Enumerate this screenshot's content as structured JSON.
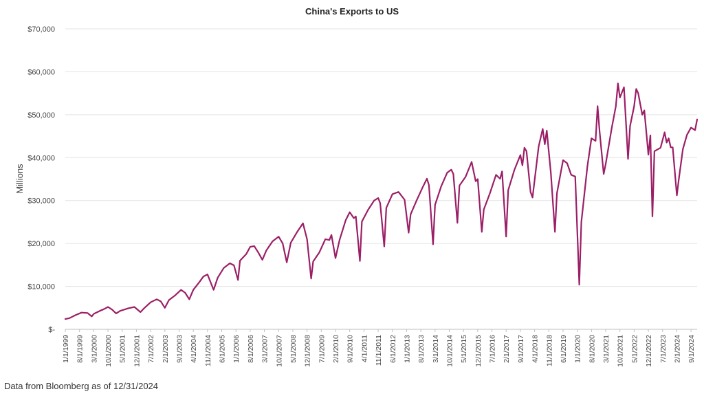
{
  "source_note": "Data from Bloomberg as of 12/31/2024",
  "chart_data": {
    "type": "line",
    "title": "China's Exports to US",
    "ylabel": "Millions",
    "xlabel": "",
    "ylim": [
      0,
      70000
    ],
    "yticks": [
      {
        "value": 0,
        "label": "$-"
      },
      {
        "value": 10000,
        "label": "$10,000"
      },
      {
        "value": 20000,
        "label": "$20,000"
      },
      {
        "value": 30000,
        "label": "$30,000"
      },
      {
        "value": 40000,
        "label": "$40,000"
      },
      {
        "value": 50000,
        "label": "$50,000"
      },
      {
        "value": 60000,
        "label": "$60,000"
      },
      {
        "value": 70000,
        "label": "$70,000"
      }
    ],
    "xrange": [
      "1/1/1999",
      "12/1/2024"
    ],
    "xticks": [
      "1/1/1999",
      "8/1/1999",
      "3/1/2000",
      "10/1/2000",
      "5/1/2001",
      "12/1/2001",
      "7/1/2002",
      "2/1/2003",
      "9/1/2003",
      "4/1/2004",
      "11/1/2004",
      "6/1/2005",
      "1/1/2006",
      "8/1/2006",
      "3/1/2007",
      "10/1/2007",
      "5/1/2008",
      "12/1/2008",
      "7/1/2009",
      "2/1/2010",
      "9/1/2010",
      "4/1/2011",
      "11/1/2011",
      "6/1/2012",
      "1/1/2013",
      "8/1/2013",
      "3/1/2014",
      "10/1/2014",
      "5/1/2015",
      "12/1/2015",
      "7/1/2016",
      "2/1/2017",
      "9/1/2017",
      "4/1/2018",
      "11/1/2018",
      "6/1/2019",
      "1/1/2020",
      "8/1/2020",
      "3/1/2021",
      "10/1/2021",
      "5/1/2022",
      "12/1/2022",
      "7/1/2023",
      "2/1/2024",
      "9/1/2024"
    ],
    "grid": true,
    "line_color": "#9b1f66",
    "series": [
      {
        "name": "",
        "points": [
          [
            "1/1/1999",
            2400
          ],
          [
            "3/1/1999",
            2600
          ],
          [
            "6/1/1999",
            3300
          ],
          [
            "9/1/1999",
            3900
          ],
          [
            "12/1/1999",
            3800
          ],
          [
            "2/1/2000",
            3000
          ],
          [
            "3/1/2000",
            3600
          ],
          [
            "6/1/2000",
            4300
          ],
          [
            "8/1/2000",
            4700
          ],
          [
            "10/1/2000",
            5200
          ],
          [
            "12/1/2000",
            4600
          ],
          [
            "2/1/2001",
            3700
          ],
          [
            "4/1/2001",
            4300
          ],
          [
            "8/1/2001",
            4900
          ],
          [
            "11/1/2001",
            5200
          ],
          [
            "2/1/2002",
            4000
          ],
          [
            "4/1/2002",
            5000
          ],
          [
            "7/1/2002",
            6300
          ],
          [
            "10/1/2002",
            7000
          ],
          [
            "12/1/2002",
            6500
          ],
          [
            "2/1/2003",
            5000
          ],
          [
            "4/1/2003",
            6800
          ],
          [
            "7/1/2003",
            7900
          ],
          [
            "10/1/2003",
            9200
          ],
          [
            "12/1/2003",
            8500
          ],
          [
            "2/1/2004",
            7000
          ],
          [
            "4/1/2004",
            9200
          ],
          [
            "7/1/2004",
            11000
          ],
          [
            "9/1/2004",
            12300
          ],
          [
            "11/1/2004",
            12800
          ],
          [
            "2/1/2005",
            9200
          ],
          [
            "4/1/2005",
            12000
          ],
          [
            "7/1/2005",
            14300
          ],
          [
            "10/1/2005",
            15400
          ],
          [
            "12/1/2005",
            14900
          ],
          [
            "2/1/2006",
            11500
          ],
          [
            "3/1/2006",
            16000
          ],
          [
            "6/1/2006",
            17500
          ],
          [
            "8/1/2006",
            19200
          ],
          [
            "10/1/2006",
            19400
          ],
          [
            "12/1/2006",
            17900
          ],
          [
            "2/1/2007",
            16200
          ],
          [
            "4/1/2007",
            18400
          ],
          [
            "7/1/2007",
            20500
          ],
          [
            "10/1/2007",
            21600
          ],
          [
            "12/1/2007",
            20000
          ],
          [
            "2/1/2008",
            15600
          ],
          [
            "4/1/2008",
            20200
          ],
          [
            "7/1/2008",
            22600
          ],
          [
            "10/1/2008",
            24700
          ],
          [
            "12/1/2008",
            21000
          ],
          [
            "2/1/2009",
            11800
          ],
          [
            "3/1/2009",
            15800
          ],
          [
            "6/1/2009",
            17900
          ],
          [
            "9/1/2009",
            21000
          ],
          [
            "11/1/2009",
            20800
          ],
          [
            "12/1/2009",
            22000
          ],
          [
            "2/1/2010",
            16600
          ],
          [
            "4/1/2010",
            20800
          ],
          [
            "7/1/2010",
            25400
          ],
          [
            "9/1/2010",
            27300
          ],
          [
            "11/1/2010",
            25900
          ],
          [
            "12/1/2010",
            26300
          ],
          [
            "2/1/2011",
            15900
          ],
          [
            "3/1/2011",
            25100
          ],
          [
            "6/1/2011",
            27800
          ],
          [
            "9/1/2011",
            30000
          ],
          [
            "11/1/2011",
            30600
          ],
          [
            "12/1/2011",
            29400
          ],
          [
            "2/1/2012",
            19300
          ],
          [
            "3/1/2012",
            28300
          ],
          [
            "6/1/2012",
            31500
          ],
          [
            "9/1/2012",
            32000
          ],
          [
            "12/1/2012",
            30200
          ],
          [
            "2/1/2013",
            22500
          ],
          [
            "3/1/2013",
            26800
          ],
          [
            "6/1/2013",
            30100
          ],
          [
            "9/1/2013",
            33200
          ],
          [
            "11/1/2013",
            35100
          ],
          [
            "12/1/2013",
            33600
          ],
          [
            "2/1/2014",
            19800
          ],
          [
            "3/1/2014",
            29000
          ],
          [
            "6/1/2014",
            33300
          ],
          [
            "9/1/2014",
            36500
          ],
          [
            "11/1/2014",
            37200
          ],
          [
            "12/1/2014",
            36200
          ],
          [
            "2/1/2015",
            24800
          ],
          [
            "3/1/2015",
            33500
          ],
          [
            "6/1/2015",
            35500
          ],
          [
            "8/1/2015",
            37800
          ],
          [
            "9/1/2015",
            39000
          ],
          [
            "11/1/2015",
            34500
          ],
          [
            "12/1/2015",
            35000
          ],
          [
            "2/1/2016",
            22700
          ],
          [
            "3/1/2016",
            27900
          ],
          [
            "6/1/2016",
            31700
          ],
          [
            "9/1/2016",
            36000
          ],
          [
            "11/1/2016",
            35100
          ],
          [
            "12/1/2016",
            36800
          ],
          [
            "2/1/2017",
            21600
          ],
          [
            "3/1/2017",
            32400
          ],
          [
            "6/1/2017",
            37100
          ],
          [
            "9/1/2017",
            40600
          ],
          [
            "10/1/2017",
            38200
          ],
          [
            "11/1/2017",
            42300
          ],
          [
            "12/1/2017",
            41500
          ],
          [
            "2/1/2018",
            32000
          ],
          [
            "3/1/2018",
            30700
          ],
          [
            "6/1/2018",
            42600
          ],
          [
            "8/1/2018",
            46700
          ],
          [
            "9/1/2018",
            43100
          ],
          [
            "10/1/2018",
            46300
          ],
          [
            "12/1/2018",
            36500
          ],
          [
            "2/1/2019",
            22700
          ],
          [
            "3/1/2019",
            31700
          ],
          [
            "6/1/2019",
            39400
          ],
          [
            "8/1/2019",
            38700
          ],
          [
            "10/1/2019",
            36000
          ],
          [
            "12/1/2019",
            35600
          ],
          [
            "2/1/2020",
            10400
          ],
          [
            "3/1/2020",
            25000
          ],
          [
            "6/1/2020",
            38000
          ],
          [
            "8/1/2020",
            44500
          ],
          [
            "10/1/2020",
            43900
          ],
          [
            "11/1/2020",
            52000
          ],
          [
            "12/1/2020",
            46000
          ],
          [
            "2/1/2021",
            36200
          ],
          [
            "3/1/2021",
            38500
          ],
          [
            "6/1/2021",
            47000
          ],
          [
            "8/1/2021",
            52000
          ],
          [
            "9/1/2021",
            57300
          ],
          [
            "10/1/2021",
            54000
          ],
          [
            "12/1/2021",
            56400
          ],
          [
            "2/1/2022",
            39700
          ],
          [
            "3/1/2022",
            47400
          ],
          [
            "5/1/2022",
            52000
          ],
          [
            "6/1/2022",
            56000
          ],
          [
            "7/1/2022",
            55000
          ],
          [
            "9/1/2022",
            50000
          ],
          [
            "10/1/2022",
            51000
          ],
          [
            "12/1/2022",
            40700
          ],
          [
            "1/1/2023",
            45200
          ],
          [
            "2/1/2023",
            26300
          ],
          [
            "3/1/2023",
            41500
          ],
          [
            "6/1/2023",
            42300
          ],
          [
            "8/1/2023",
            45900
          ],
          [
            "9/1/2023",
            43500
          ],
          [
            "10/1/2023",
            44500
          ],
          [
            "11/1/2023",
            42400
          ],
          [
            "12/1/2023",
            42400
          ],
          [
            "2/1/2024",
            31200
          ],
          [
            "3/1/2024",
            35000
          ],
          [
            "5/1/2024",
            42000
          ],
          [
            "7/1/2024",
            45300
          ],
          [
            "9/1/2024",
            47000
          ],
          [
            "11/1/2024",
            46400
          ],
          [
            "12/1/2024",
            48900
          ]
        ]
      }
    ]
  }
}
